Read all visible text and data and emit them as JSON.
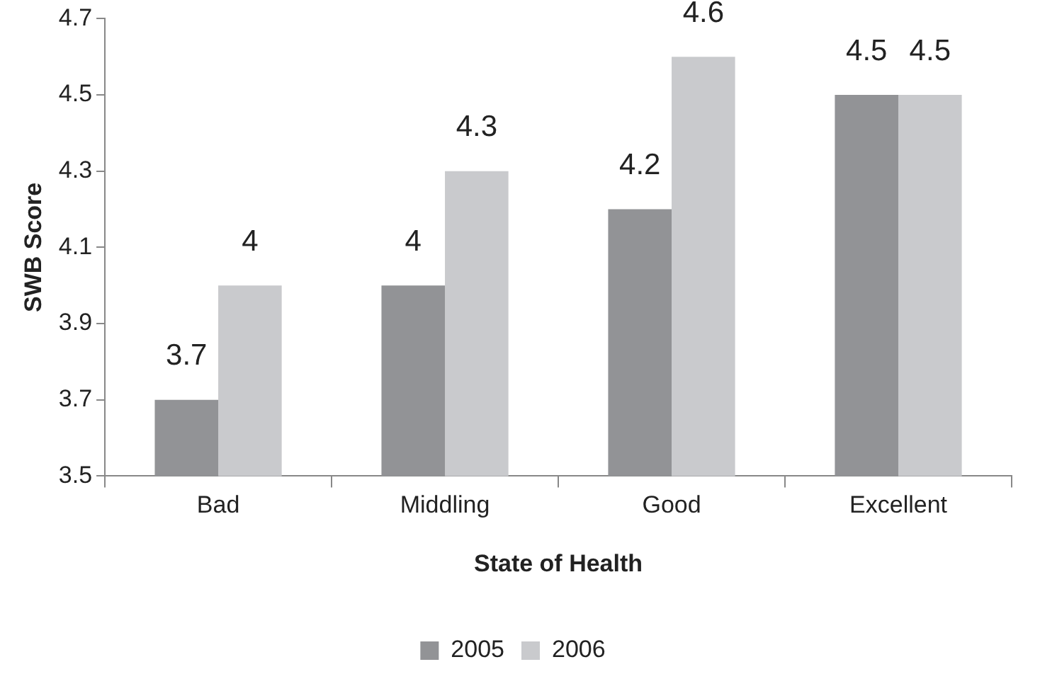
{
  "chart_data": {
    "type": "bar",
    "xlabel": "State of Health",
    "ylabel": "SWB Score",
    "categories": [
      "Bad",
      "Middling",
      "Good",
      "Excellent"
    ],
    "series": [
      {
        "name": "2005",
        "color": "#929396",
        "values": [
          3.7,
          4,
          4.2,
          4.5
        ]
      },
      {
        "name": "2006",
        "color": "#c9cacd",
        "values": [
          4,
          4.3,
          4.6,
          4.5
        ]
      }
    ],
    "ylim": [
      3.5,
      4.7
    ],
    "yticks": [
      3.5,
      3.7,
      3.9,
      4.1,
      4.3,
      4.5,
      4.7
    ],
    "data_labels": true,
    "legend": "bottom"
  }
}
